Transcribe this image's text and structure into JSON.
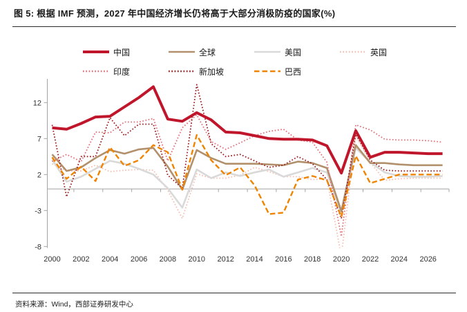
{
  "page": {
    "title": "图 5: 根据 IMF 预测，2027 年中国经济增长仍将高于大部分消极防疫的国家(%)",
    "source": "资料来源：Wind，西部证券研发中心"
  },
  "chart_data": {
    "type": "line",
    "title": "根据 IMF 预测，2027 年中国经济增长仍将高于大部分消极防疫的国家(%)",
    "unit": "%",
    "grid": false,
    "legend_position": "top",
    "x": [
      2000,
      2001,
      2002,
      2003,
      2004,
      2005,
      2006,
      2007,
      2008,
      2009,
      2010,
      2011,
      2012,
      2013,
      2014,
      2015,
      2016,
      2017,
      2018,
      2019,
      2020,
      2021,
      2022,
      2023,
      2024,
      2025,
      2026,
      2027
    ],
    "x_tick_labels": [
      "2000",
      "2002",
      "2004",
      "2006",
      "2008",
      "2010",
      "2012",
      "2014",
      "2016",
      "2018",
      "2020",
      "2022",
      "2024",
      "2026"
    ],
    "y_ticks": [
      12,
      7,
      2,
      -3,
      -8
    ],
    "ylim": [
      -8.2,
      14.8
    ],
    "series": [
      {
        "key": "china",
        "name": "中国",
        "color": "#c0162c",
        "style": "solid",
        "width": 4,
        "values": [
          8.5,
          8.3,
          9.1,
          10.0,
          10.1,
          11.4,
          12.7,
          14.2,
          9.7,
          9.4,
          10.6,
          9.6,
          7.9,
          7.8,
          7.4,
          7.0,
          6.9,
          6.9,
          6.8,
          6.0,
          2.2,
          8.1,
          4.4,
          5.1,
          5.1,
          5.0,
          4.9,
          4.9
        ]
      },
      {
        "key": "global",
        "name": "全球",
        "color": "#b1906b",
        "style": "solid",
        "width": 2.6,
        "values": [
          4.8,
          2.5,
          3.0,
          4.3,
          5.4,
          4.9,
          5.5,
          5.7,
          3.1,
          -0.1,
          5.4,
          4.3,
          3.5,
          3.5,
          3.5,
          3.4,
          3.3,
          3.8,
          3.6,
          2.9,
          -3.1,
          6.1,
          3.6,
          3.6,
          3.4,
          3.3,
          3.3,
          3.3
        ]
      },
      {
        "key": "us",
        "name": "美国",
        "color": "#d9d9d9",
        "style": "solid",
        "width": 2.6,
        "values": [
          4.1,
          1.0,
          1.7,
          2.8,
          3.9,
          3.5,
          2.8,
          2.0,
          0.1,
          -2.6,
          2.7,
          1.5,
          2.3,
          1.8,
          2.3,
          2.7,
          1.7,
          2.3,
          2.9,
          2.3,
          -3.4,
          5.7,
          3.7,
          2.3,
          1.8,
          1.7,
          1.7,
          1.8
        ]
      },
      {
        "key": "uk",
        "name": "英国",
        "color": "#f3c1b3",
        "style": "dotted",
        "width": 1.8,
        "values": [
          3.5,
          2.5,
          2.5,
          3.3,
          2.4,
          2.6,
          2.7,
          2.6,
          -0.2,
          -4.1,
          2.1,
          1.5,
          1.5,
          1.9,
          3.0,
          2.4,
          1.7,
          1.7,
          1.3,
          1.4,
          -9.3,
          7.4,
          3.7,
          1.2,
          1.4,
          1.5,
          1.5,
          1.5
        ]
      },
      {
        "key": "india",
        "name": "印度",
        "color": "#e2707a",
        "style": "dotted",
        "width": 1.8,
        "values": [
          3.8,
          4.8,
          3.8,
          7.9,
          7.8,
          9.3,
          9.3,
          9.8,
          3.9,
          8.5,
          10.3,
          6.6,
          5.5,
          6.4,
          7.4,
          8.0,
          8.3,
          6.8,
          6.5,
          3.7,
          -6.6,
          8.9,
          8.2,
          6.9,
          6.8,
          6.8,
          6.7,
          6.5
        ]
      },
      {
        "key": "singapore",
        "name": "新加坡",
        "color": "#9c2021",
        "style": "dotted",
        "width": 1.8,
        "values": [
          8.9,
          -1.1,
          4.5,
          4.5,
          9.9,
          7.4,
          9.0,
          9.0,
          1.9,
          0.1,
          14.5,
          6.3,
          4.5,
          4.8,
          3.9,
          3.0,
          3.3,
          4.5,
          3.5,
          1.3,
          -4.1,
          7.6,
          4.0,
          2.6,
          2.5,
          2.5,
          2.5,
          2.5
        ]
      },
      {
        "key": "brazil",
        "name": "巴西",
        "color": "#f08300",
        "style": "dashed",
        "width": 2.4,
        "values": [
          4.4,
          1.4,
          3.1,
          1.1,
          5.8,
          3.2,
          4.0,
          6.1,
          5.1,
          -0.1,
          7.5,
          4.0,
          1.9,
          3.0,
          0.5,
          -3.5,
          -3.3,
          1.3,
          1.8,
          1.2,
          -3.9,
          4.6,
          0.8,
          1.4,
          2.0,
          2.0,
          2.0,
          2.0
        ]
      }
    ]
  }
}
